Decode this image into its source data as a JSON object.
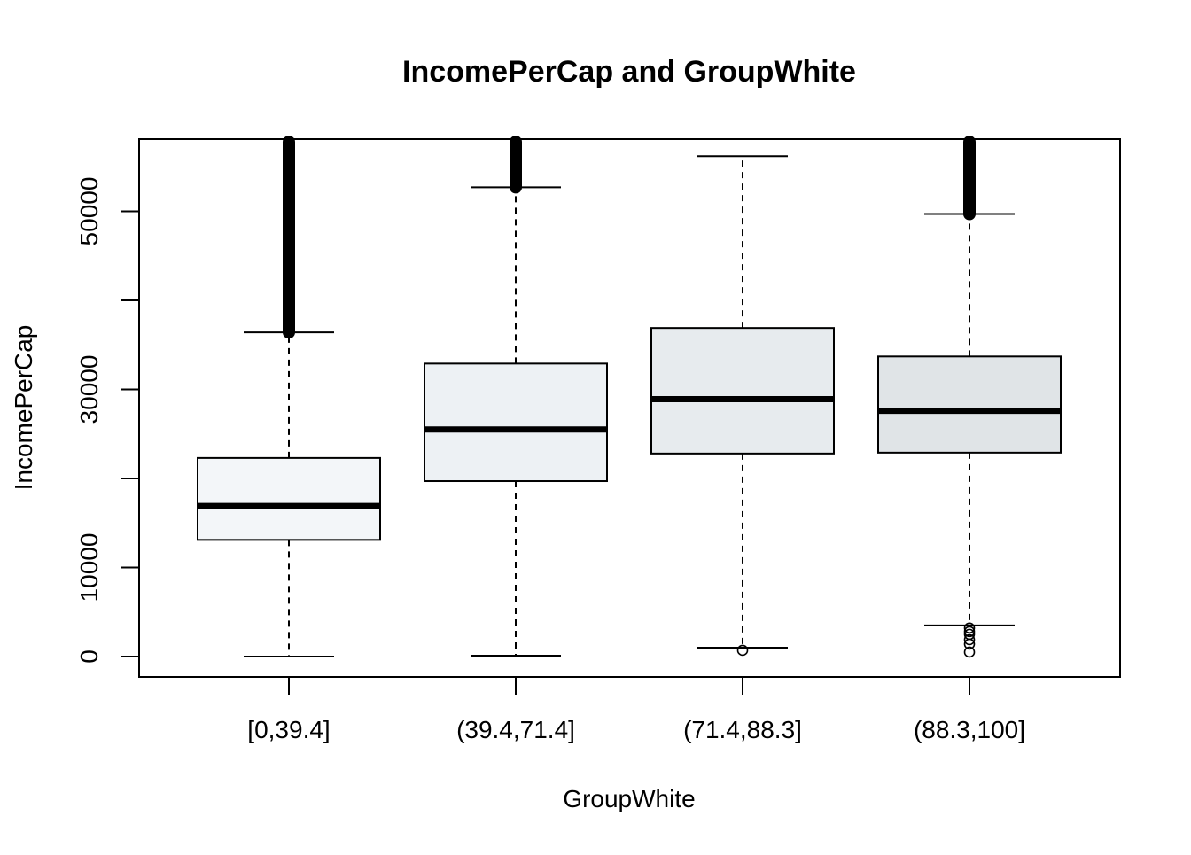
{
  "chart_data": {
    "type": "box",
    "title": "IncomePerCap and GroupWhite",
    "xlabel": "GroupWhite",
    "ylabel": "IncomePerCap",
    "ylim": [
      -1200,
      59000
    ],
    "y_ticks": [
      0,
      10000,
      20000,
      30000,
      40000,
      50000
    ],
    "y_tick_labels": [
      "0",
      "10000",
      "",
      "30000",
      "",
      "50000"
    ],
    "categories": [
      "[0,39.4]",
      "(39.4,71.4]",
      "(71.4,88.3]",
      "(88.3,100]"
    ],
    "boxes": [
      {
        "category": "[0,39.4]",
        "whisker_low": 0,
        "q1": 13100,
        "median": 16900,
        "q3": 22300,
        "whisker_high": 36400,
        "fill": "#f3f6f9",
        "outliers": {
          "dense_range": [
            36400,
            57800
          ]
        }
      },
      {
        "category": "(39.4,71.4]",
        "whisker_low": 100,
        "q1": 19700,
        "median": 25500,
        "q3": 32900,
        "whisker_high": 52700,
        "fill": "#edf1f4",
        "outliers": {
          "dense_range": [
            52700,
            57800
          ]
        }
      },
      {
        "category": "(71.4,88.3]",
        "whisker_low": 1000,
        "q1": 22800,
        "median": 28900,
        "q3": 36900,
        "whisker_high": 56200,
        "fill": "#e7ebee",
        "outliers": {
          "points": [
            700
          ]
        }
      },
      {
        "category": "(88.3,100]",
        "whisker_low": 3500,
        "q1": 22900,
        "median": 27600,
        "q3": 33700,
        "whisker_high": 49700,
        "fill": "#e0e4e7",
        "outliers": {
          "dense_range": [
            49700,
            57800
          ],
          "points": [
            3200,
            2800,
            2500,
            1900,
            1400,
            500
          ]
        }
      }
    ],
    "grid": false,
    "legend": "none"
  }
}
